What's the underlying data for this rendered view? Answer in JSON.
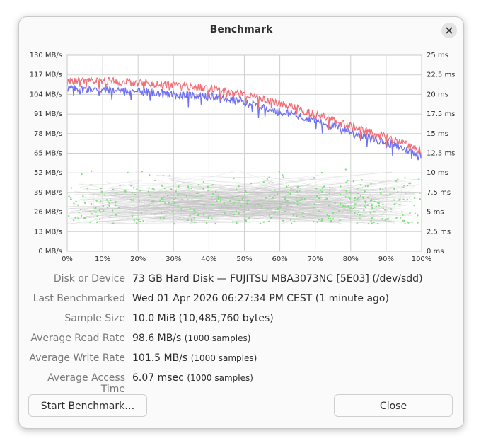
{
  "window": {
    "title": "Benchmark"
  },
  "chart_data": {
    "type": "line",
    "xlabel": "",
    "ylabel_left": "",
    "ylabel_right": "",
    "x_ticks": [
      "0%",
      "10%",
      "20%",
      "30%",
      "40%",
      "50%",
      "60%",
      "70%",
      "80%",
      "90%",
      "100%"
    ],
    "y_left_ticks": [
      "0 MB/s",
      "13 MB/s",
      "26 MB/s",
      "39 MB/s",
      "52 MB/s",
      "65 MB/s",
      "78 MB/s",
      "91 MB/s",
      "104 MB/s",
      "117 MB/s",
      "130 MB/s"
    ],
    "y_right_ticks": [
      "0 ms",
      "2.5 ms",
      "5 ms",
      "7.5 ms",
      "10 ms",
      "12.5 ms",
      "15 ms",
      "17.5 ms",
      "20 ms",
      "22.5 ms",
      "25 ms"
    ],
    "xlim": [
      0,
      100
    ],
    "ylim_left": [
      0,
      130
    ],
    "ylim_right": [
      0,
      25
    ],
    "grid": true,
    "series": [
      {
        "color": "#7070f0",
        "x": [
          0,
          10,
          20,
          30,
          40,
          50,
          60,
          70,
          80,
          90,
          100
        ],
        "values": [
          108,
          107,
          106,
          104,
          103,
          99,
          93,
          87,
          79,
          72,
          64
        ]
      },
      {
        "color": "#f06f78",
        "x": [
          0,
          10,
          20,
          30,
          40,
          50,
          60,
          70,
          80,
          90,
          100
        ],
        "values": [
          113,
          113,
          112,
          110,
          108,
          104,
          98,
          91,
          83,
          76,
          67
        ]
      }
    ],
    "access_time_ms": {
      "color": "#7ee07e",
      "min": 3.5,
      "max": 10.5,
      "mean": 6.07
    }
  },
  "info": {
    "disk_label": "Disk or Device",
    "disk_value": "73 GB Hard Disk — FUJITSU MBA3073NC [5E03] (/dev/sdd)",
    "last_label": "Last Benchmarked",
    "last_value": "Wed 01 Apr 2026 06:27:34 PM CEST (1 minute ago)",
    "sample_label": "Sample Size",
    "sample_value": "10.0 MiB (10,485,760 bytes)",
    "read_label": "Average Read Rate",
    "read_value": "98.6 MB/s",
    "read_samples": "(1000 samples)",
    "write_label": "Average Write Rate",
    "write_value": "101.5 MB/s",
    "write_samples": "(1000 samples)",
    "access_label": "Average Access Time",
    "access_value": "6.07 msec",
    "access_samples": "(1000 samples)"
  },
  "buttons": {
    "start": "Start Benchmark…",
    "close": "Close"
  }
}
